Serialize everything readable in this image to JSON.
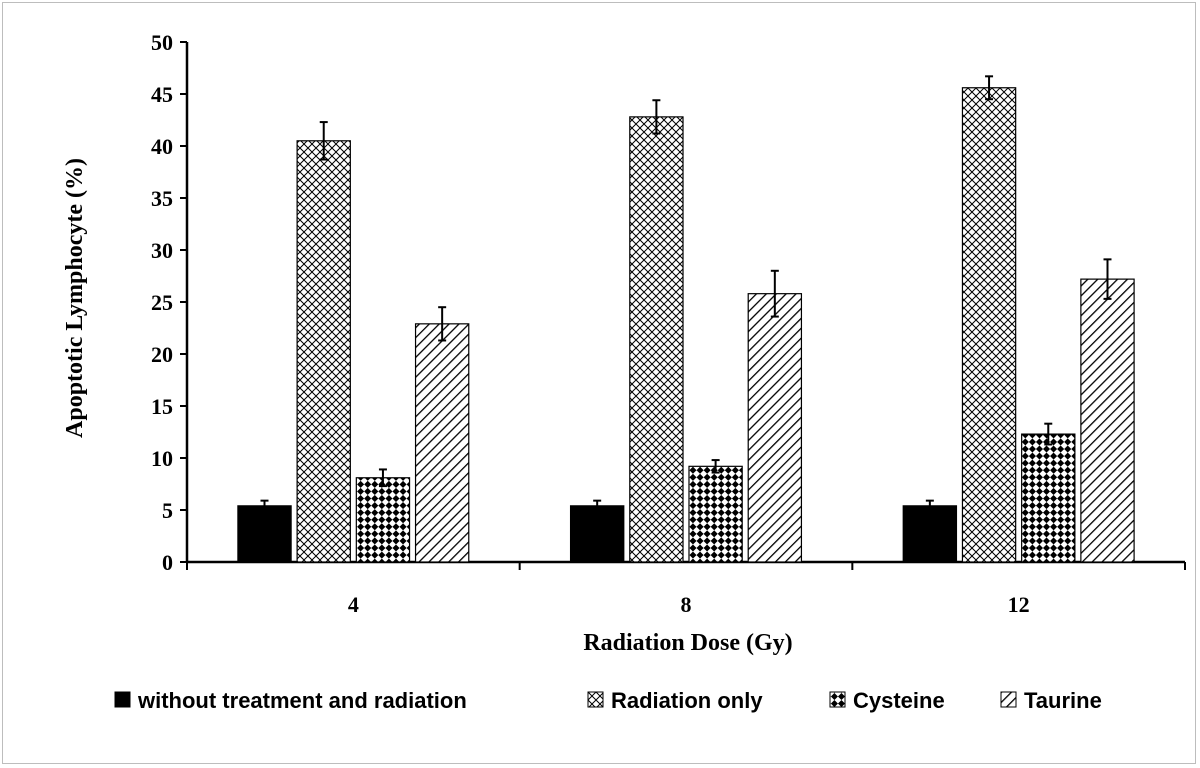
{
  "chart_data": {
    "type": "bar",
    "xlabel": "Radiation Dose (Gy)",
    "ylabel": "Apoptotic Lymphocyte (%)",
    "ylim": [
      0,
      50
    ],
    "yticks": [
      0,
      5,
      10,
      15,
      20,
      25,
      30,
      35,
      40,
      45,
      50
    ],
    "categories": [
      "4",
      "8",
      "12"
    ],
    "grid": false,
    "legend_position": "bottom",
    "series": [
      {
        "name": "without treatment and radiation",
        "pattern": "solid",
        "color": "#000000",
        "values": [
          5.4,
          5.4,
          5.4
        ],
        "errors": [
          0.5,
          0.5,
          0.5
        ]
      },
      {
        "name": "Radiation only",
        "pattern": "crosshatch",
        "color": "#000000",
        "values": [
          40.5,
          42.8,
          45.6
        ],
        "errors": [
          1.8,
          1.6,
          1.1
        ]
      },
      {
        "name": "Cysteine",
        "pattern": "checker",
        "color": "#000000",
        "values": [
          8.1,
          9.2,
          12.3
        ],
        "errors": [
          0.8,
          0.6,
          1.0
        ]
      },
      {
        "name": "Taurine",
        "pattern": "diagonal",
        "color": "#000000",
        "values": [
          22.9,
          25.8,
          27.2
        ],
        "errors": [
          1.6,
          2.2,
          1.9
        ]
      }
    ]
  }
}
